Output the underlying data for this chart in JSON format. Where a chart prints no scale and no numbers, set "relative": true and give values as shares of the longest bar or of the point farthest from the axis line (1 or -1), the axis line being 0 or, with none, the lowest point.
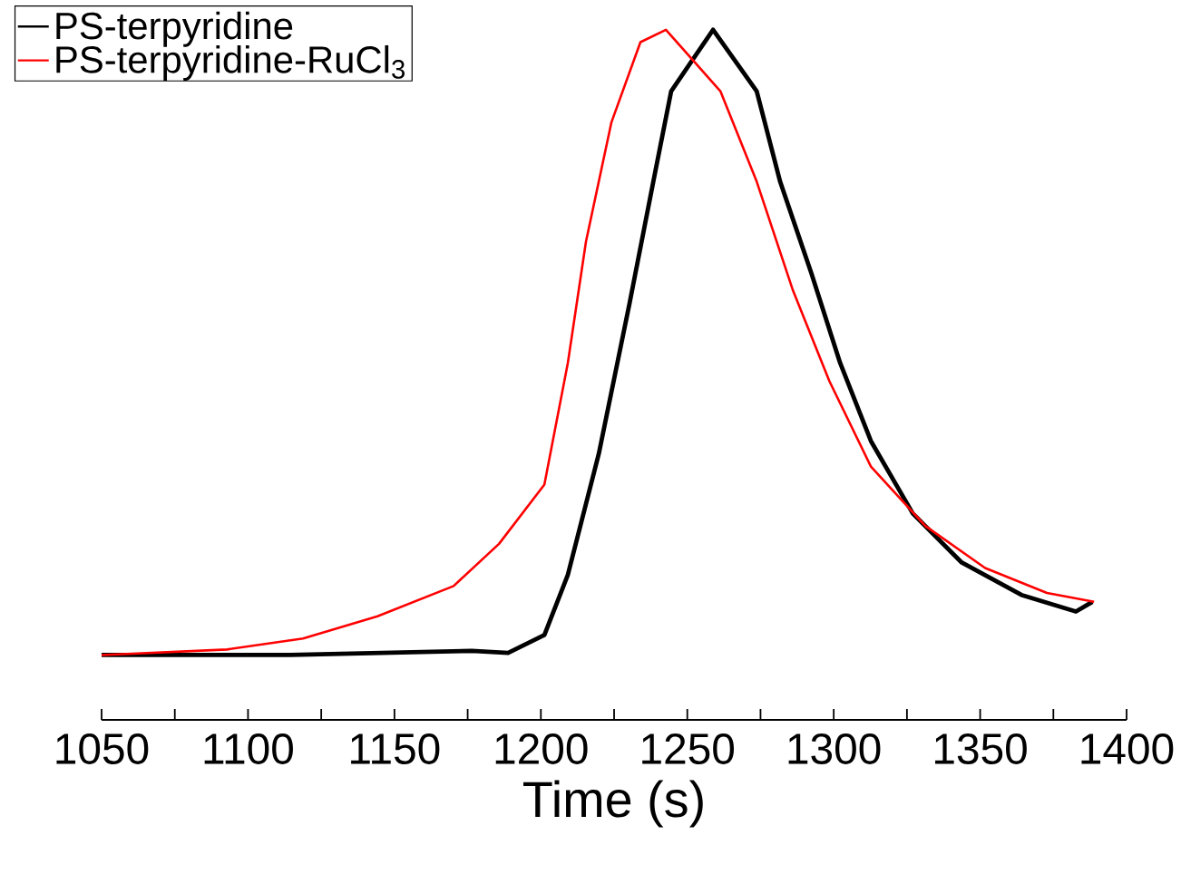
{
  "chart_data": {
    "type": "line",
    "xlabel": "Time (s)",
    "relative": true,
    "legend": "top left",
    "xlim": [
      1050,
      1400
    ],
    "xticks": [
      1050,
      {
        "value": 1075,
        "label": null
      },
      1100,
      {
        "value": 1125,
        "label": null
      },
      1150,
      {
        "value": 1175,
        "label": null
      },
      1200,
      {
        "value": 1225,
        "label": null
      },
      1250,
      {
        "value": 1275,
        "label": null
      },
      1300,
      {
        "value": 1325,
        "label": null
      },
      1350,
      {
        "value": 1375,
        "label": null
      },
      1400
    ],
    "series": [
      {
        "name": "PS-terpyridine",
        "color": "#000000",
        "x": [
          1050,
          1114.4,
          1176.4,
          1188.8,
          1201.2,
          1209.2,
          1219.8,
          1230.3,
          1238.4,
          1244.5,
          1258.8,
          1273.7,
          1281.7,
          1292.3,
          1302.2,
          1312.7,
          1327.0,
          1343.7,
          1364.1,
          1382.7,
          1388.3
        ],
        "values": [
          0.094,
          0.094,
          0.1,
          0.097,
          0.123,
          0.21,
          0.386,
          0.604,
          0.78,
          0.911,
          1.0,
          0.911,
          0.78,
          0.648,
          0.517,
          0.404,
          0.299,
          0.228,
          0.181,
          0.157,
          0.171
        ]
      },
      {
        "name": "PS-terpyridine-RuCl$_{3}$",
        "color": "#ff0000",
        "x": [
          1050,
          1092.8,
          1118.8,
          1144.2,
          1170.2,
          1185.7,
          1201.2,
          1209.2,
          1215.4,
          1224.1,
          1234.0,
          1242.7,
          1261.3,
          1273.7,
          1286.1,
          1298.5,
          1312.7,
          1331.3,
          1351.7,
          1372.8,
          1388.9
        ],
        "values": [
          0.094,
          0.102,
          0.118,
          0.15,
          0.194,
          0.255,
          0.341,
          0.517,
          0.693,
          0.866,
          0.982,
          1.0,
          0.911,
          0.78,
          0.622,
          0.491,
          0.367,
          0.281,
          0.22,
          0.184,
          0.171
        ]
      }
    ]
  }
}
